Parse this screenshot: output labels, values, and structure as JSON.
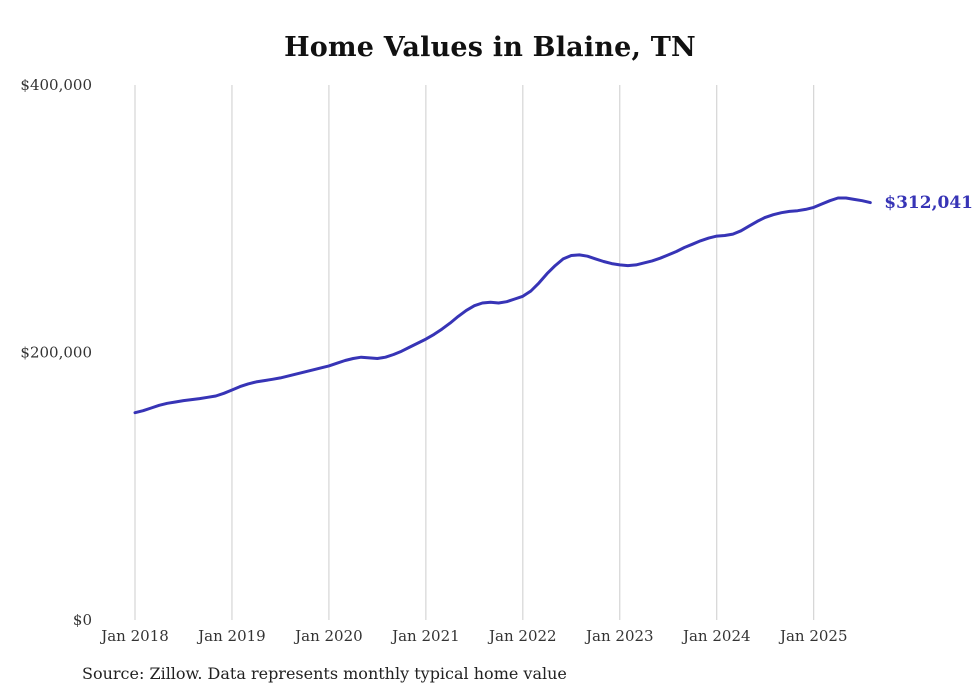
{
  "chart_data": {
    "type": "line",
    "title": "Home Values in Blaine, TN",
    "source_note": "Source: Zillow. Data represents monthly typical home value",
    "end_label": "$312,041",
    "end_value": 312041,
    "line_color": "#3734b6",
    "grid_color": "#cccccc",
    "ylim": [
      0,
      400000
    ],
    "legend": "none",
    "grid": "vertical-only",
    "x": [
      "2018-01",
      "2018-02",
      "2018-03",
      "2018-04",
      "2018-05",
      "2018-06",
      "2018-07",
      "2018-08",
      "2018-09",
      "2018-10",
      "2018-11",
      "2018-12",
      "2019-01",
      "2019-02",
      "2019-03",
      "2019-04",
      "2019-05",
      "2019-06",
      "2019-07",
      "2019-08",
      "2019-09",
      "2019-10",
      "2019-11",
      "2019-12",
      "2020-01",
      "2020-02",
      "2020-03",
      "2020-04",
      "2020-05",
      "2020-06",
      "2020-07",
      "2020-08",
      "2020-09",
      "2020-10",
      "2020-11",
      "2020-12",
      "2021-01",
      "2021-02",
      "2021-03",
      "2021-04",
      "2021-05",
      "2021-06",
      "2021-07",
      "2021-08",
      "2021-09",
      "2021-10",
      "2021-11",
      "2021-12",
      "2022-01",
      "2022-02",
      "2022-03",
      "2022-04",
      "2022-05",
      "2022-06",
      "2022-07",
      "2022-08",
      "2022-09",
      "2022-10",
      "2022-11",
      "2022-12",
      "2023-01",
      "2023-02",
      "2023-03",
      "2023-04",
      "2023-05",
      "2023-06",
      "2023-07",
      "2023-08",
      "2023-09",
      "2023-10",
      "2023-11",
      "2023-12",
      "2024-01",
      "2024-02",
      "2024-03",
      "2024-04",
      "2024-05",
      "2024-06",
      "2024-07",
      "2024-08",
      "2024-09",
      "2024-10",
      "2024-11",
      "2024-12",
      "2025-01",
      "2025-02",
      "2025-03",
      "2025-04",
      "2025-05",
      "2025-06",
      "2025-07",
      "2025-08"
    ],
    "values": [
      155000,
      156500,
      158500,
      160500,
      162000,
      163000,
      164000,
      164800,
      165500,
      166500,
      167500,
      169500,
      172000,
      174500,
      176500,
      178000,
      179000,
      180000,
      181000,
      182500,
      184000,
      185500,
      187000,
      188500,
      190000,
      192000,
      194000,
      195500,
      196500,
      196000,
      195500,
      196500,
      198500,
      201000,
      204000,
      207000,
      210000,
      213500,
      217500,
      222000,
      227000,
      231500,
      235000,
      237000,
      237500,
      237000,
      238000,
      240000,
      242000,
      246000,
      252000,
      259000,
      265000,
      270000,
      272500,
      273000,
      272000,
      270000,
      268000,
      266500,
      265500,
      265000,
      265500,
      267000,
      268500,
      270500,
      273000,
      275500,
      278500,
      281000,
      283500,
      285500,
      287000,
      287500,
      288500,
      291000,
      294500,
      298000,
      301000,
      303000,
      304500,
      305500,
      306000,
      307000,
      308500,
      311000,
      313500,
      315500,
      315500,
      314500,
      313500,
      312041
    ],
    "y_ticks": [
      {
        "value": 0,
        "label": "$0"
      },
      {
        "value": 200000,
        "label": "$200,000"
      },
      {
        "value": 400000,
        "label": "$400,000"
      }
    ],
    "x_ticks": [
      {
        "month_index": 0,
        "label": "Jan 2018"
      },
      {
        "month_index": 12,
        "label": "Jan 2019"
      },
      {
        "month_index": 24,
        "label": "Jan 2020"
      },
      {
        "month_index": 36,
        "label": "Jan 2021"
      },
      {
        "month_index": 48,
        "label": "Jan 2022"
      },
      {
        "month_index": 60,
        "label": "Jan 2023"
      },
      {
        "month_index": 72,
        "label": "Jan 2024"
      },
      {
        "month_index": 84,
        "label": "Jan 2025"
      }
    ]
  }
}
